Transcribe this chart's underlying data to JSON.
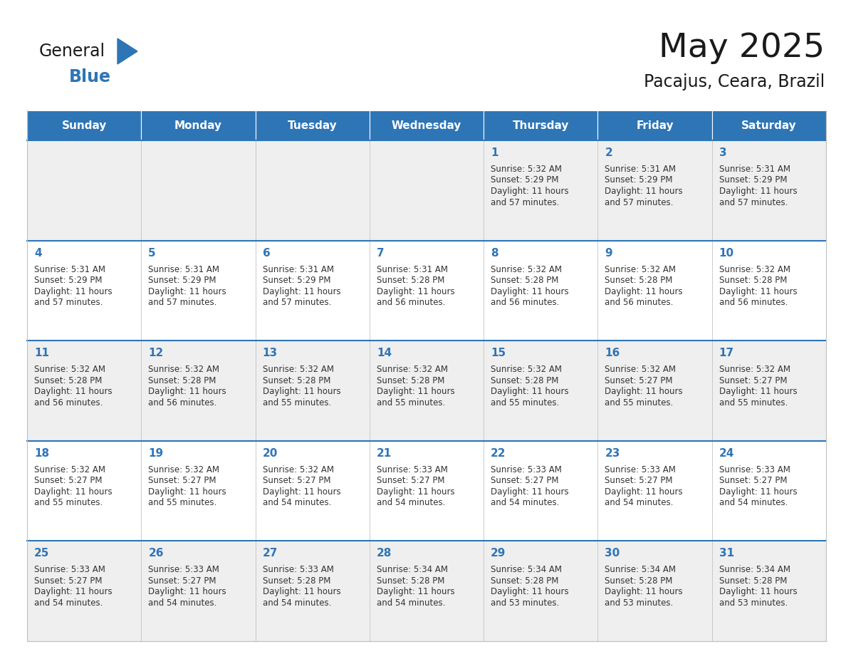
{
  "title": "May 2025",
  "subtitle": "Pacajus, Ceara, Brazil",
  "header_bg": "#2E75B6",
  "header_text_color": "#FFFFFF",
  "cell_bg_odd": "#EFEFEF",
  "cell_bg_even": "#FFFFFF",
  "day_number_color": "#2E75B6",
  "text_color": "#333333",
  "grid_color": "#C0C0C0",
  "row_sep_color": "#2E75B6",
  "days_of_week": [
    "Sunday",
    "Monday",
    "Tuesday",
    "Wednesday",
    "Thursday",
    "Friday",
    "Saturday"
  ],
  "weeks": [
    [
      {
        "day": 0,
        "sunrise": "",
        "sunset": "",
        "daylight_h": "",
        "daylight_m": ""
      },
      {
        "day": 0,
        "sunrise": "",
        "sunset": "",
        "daylight_h": "",
        "daylight_m": ""
      },
      {
        "day": 0,
        "sunrise": "",
        "sunset": "",
        "daylight_h": "",
        "daylight_m": ""
      },
      {
        "day": 0,
        "sunrise": "",
        "sunset": "",
        "daylight_h": "",
        "daylight_m": ""
      },
      {
        "day": 1,
        "sunrise": "5:32 AM",
        "sunset": "5:29 PM",
        "daylight_h": "11 hours",
        "daylight_m": "and 57 minutes."
      },
      {
        "day": 2,
        "sunrise": "5:31 AM",
        "sunset": "5:29 PM",
        "daylight_h": "11 hours",
        "daylight_m": "and 57 minutes."
      },
      {
        "day": 3,
        "sunrise": "5:31 AM",
        "sunset": "5:29 PM",
        "daylight_h": "11 hours",
        "daylight_m": "and 57 minutes."
      }
    ],
    [
      {
        "day": 4,
        "sunrise": "5:31 AM",
        "sunset": "5:29 PM",
        "daylight_h": "11 hours",
        "daylight_m": "and 57 minutes."
      },
      {
        "day": 5,
        "sunrise": "5:31 AM",
        "sunset": "5:29 PM",
        "daylight_h": "11 hours",
        "daylight_m": "and 57 minutes."
      },
      {
        "day": 6,
        "sunrise": "5:31 AM",
        "sunset": "5:29 PM",
        "daylight_h": "11 hours",
        "daylight_m": "and 57 minutes."
      },
      {
        "day": 7,
        "sunrise": "5:31 AM",
        "sunset": "5:28 PM",
        "daylight_h": "11 hours",
        "daylight_m": "and 56 minutes."
      },
      {
        "day": 8,
        "sunrise": "5:32 AM",
        "sunset": "5:28 PM",
        "daylight_h": "11 hours",
        "daylight_m": "and 56 minutes."
      },
      {
        "day": 9,
        "sunrise": "5:32 AM",
        "sunset": "5:28 PM",
        "daylight_h": "11 hours",
        "daylight_m": "and 56 minutes."
      },
      {
        "day": 10,
        "sunrise": "5:32 AM",
        "sunset": "5:28 PM",
        "daylight_h": "11 hours",
        "daylight_m": "and 56 minutes."
      }
    ],
    [
      {
        "day": 11,
        "sunrise": "5:32 AM",
        "sunset": "5:28 PM",
        "daylight_h": "11 hours",
        "daylight_m": "and 56 minutes."
      },
      {
        "day": 12,
        "sunrise": "5:32 AM",
        "sunset": "5:28 PM",
        "daylight_h": "11 hours",
        "daylight_m": "and 56 minutes."
      },
      {
        "day": 13,
        "sunrise": "5:32 AM",
        "sunset": "5:28 PM",
        "daylight_h": "11 hours",
        "daylight_m": "and 55 minutes."
      },
      {
        "day": 14,
        "sunrise": "5:32 AM",
        "sunset": "5:28 PM",
        "daylight_h": "11 hours",
        "daylight_m": "and 55 minutes."
      },
      {
        "day": 15,
        "sunrise": "5:32 AM",
        "sunset": "5:28 PM",
        "daylight_h": "11 hours",
        "daylight_m": "and 55 minutes."
      },
      {
        "day": 16,
        "sunrise": "5:32 AM",
        "sunset": "5:27 PM",
        "daylight_h": "11 hours",
        "daylight_m": "and 55 minutes."
      },
      {
        "day": 17,
        "sunrise": "5:32 AM",
        "sunset": "5:27 PM",
        "daylight_h": "11 hours",
        "daylight_m": "and 55 minutes."
      }
    ],
    [
      {
        "day": 18,
        "sunrise": "5:32 AM",
        "sunset": "5:27 PM",
        "daylight_h": "11 hours",
        "daylight_m": "and 55 minutes."
      },
      {
        "day": 19,
        "sunrise": "5:32 AM",
        "sunset": "5:27 PM",
        "daylight_h": "11 hours",
        "daylight_m": "and 55 minutes."
      },
      {
        "day": 20,
        "sunrise": "5:32 AM",
        "sunset": "5:27 PM",
        "daylight_h": "11 hours",
        "daylight_m": "and 54 minutes."
      },
      {
        "day": 21,
        "sunrise": "5:33 AM",
        "sunset": "5:27 PM",
        "daylight_h": "11 hours",
        "daylight_m": "and 54 minutes."
      },
      {
        "day": 22,
        "sunrise": "5:33 AM",
        "sunset": "5:27 PM",
        "daylight_h": "11 hours",
        "daylight_m": "and 54 minutes."
      },
      {
        "day": 23,
        "sunrise": "5:33 AM",
        "sunset": "5:27 PM",
        "daylight_h": "11 hours",
        "daylight_m": "and 54 minutes."
      },
      {
        "day": 24,
        "sunrise": "5:33 AM",
        "sunset": "5:27 PM",
        "daylight_h": "11 hours",
        "daylight_m": "and 54 minutes."
      }
    ],
    [
      {
        "day": 25,
        "sunrise": "5:33 AM",
        "sunset": "5:27 PM",
        "daylight_h": "11 hours",
        "daylight_m": "and 54 minutes."
      },
      {
        "day": 26,
        "sunrise": "5:33 AM",
        "sunset": "5:27 PM",
        "daylight_h": "11 hours",
        "daylight_m": "and 54 minutes."
      },
      {
        "day": 27,
        "sunrise": "5:33 AM",
        "sunset": "5:28 PM",
        "daylight_h": "11 hours",
        "daylight_m": "and 54 minutes."
      },
      {
        "day": 28,
        "sunrise": "5:34 AM",
        "sunset": "5:28 PM",
        "daylight_h": "11 hours",
        "daylight_m": "and 54 minutes."
      },
      {
        "day": 29,
        "sunrise": "5:34 AM",
        "sunset": "5:28 PM",
        "daylight_h": "11 hours",
        "daylight_m": "and 53 minutes."
      },
      {
        "day": 30,
        "sunrise": "5:34 AM",
        "sunset": "5:28 PM",
        "daylight_h": "11 hours",
        "daylight_m": "and 53 minutes."
      },
      {
        "day": 31,
        "sunrise": "5:34 AM",
        "sunset": "5:28 PM",
        "daylight_h": "11 hours",
        "daylight_m": "and 53 minutes."
      }
    ]
  ],
  "fig_width": 11.88,
  "fig_height": 9.18
}
